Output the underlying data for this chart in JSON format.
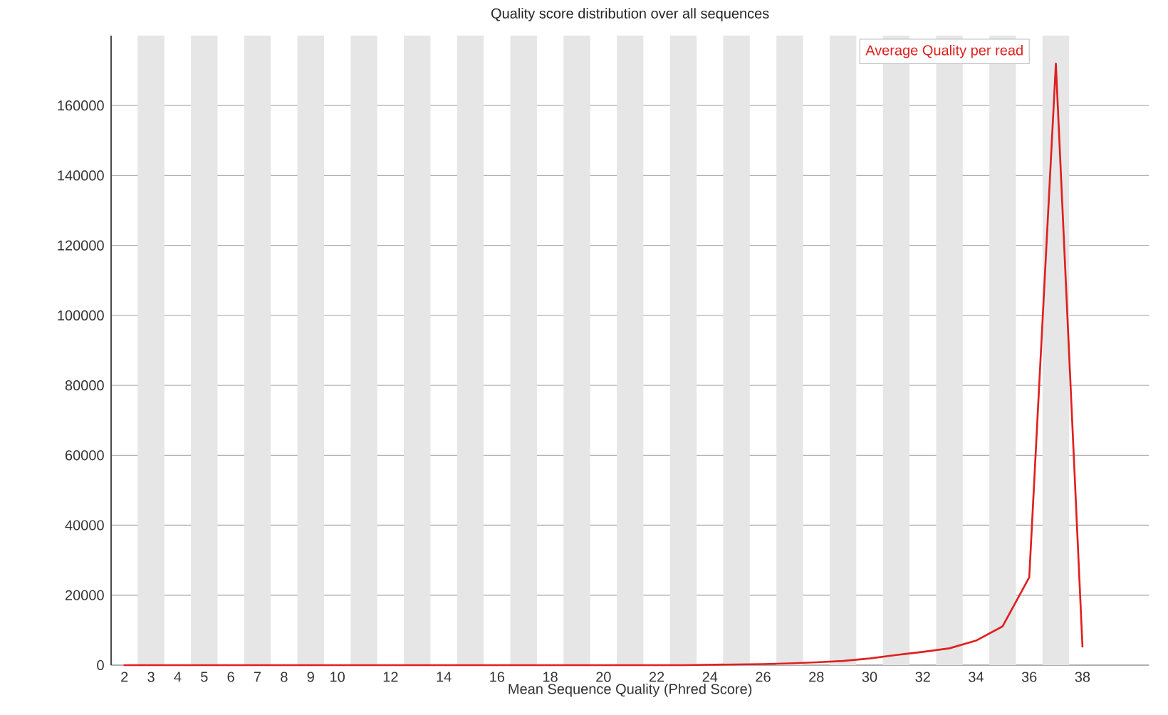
{
  "chart_data": {
    "type": "line",
    "title": "Quality score distribution over all sequences",
    "xlabel": "Mean Sequence Quality (Phred Score)",
    "x": [
      2,
      3,
      4,
      5,
      6,
      7,
      8,
      9,
      10,
      11,
      12,
      13,
      14,
      15,
      16,
      17,
      18,
      19,
      20,
      21,
      22,
      23,
      24,
      25,
      26,
      27,
      28,
      29,
      30,
      31,
      32,
      33,
      34,
      35,
      36,
      37,
      38
    ],
    "series": [
      {
        "name": "Average Quality per read",
        "color": "#e02020",
        "values": [
          0,
          0,
          0,
          0,
          0,
          0,
          0,
          0,
          0,
          0,
          0,
          0,
          0,
          0,
          0,
          0,
          0,
          0,
          0,
          0,
          0,
          0,
          100,
          200,
          300,
          500,
          800,
          1200,
          1900,
          2900,
          3800,
          4800,
          7000,
          11100,
          25100,
          172000,
          5300
        ]
      }
    ],
    "xlim": [
      1.5,
      40.5
    ],
    "ylim": [
      0,
      180000
    ],
    "xticks": [
      2,
      3,
      4,
      5,
      6,
      7,
      8,
      9,
      10,
      12,
      14,
      16,
      18,
      20,
      22,
      24,
      26,
      28,
      30,
      32,
      34,
      36,
      38
    ],
    "yticks": [
      0,
      20000,
      40000,
      60000,
      80000,
      100000,
      120000,
      140000,
      160000
    ],
    "grid": "y",
    "legend": "top right",
    "marker": "none",
    "line_style": "solid",
    "bands": [
      {
        "axis": "x",
        "from": 2.5,
        "to": 3.5,
        "color": "#e6e6e6"
      },
      {
        "axis": "x",
        "from": 4.5,
        "to": 5.5,
        "color": "#e6e6e6"
      },
      {
        "axis": "x",
        "from": 6.5,
        "to": 7.5,
        "color": "#e6e6e6"
      },
      {
        "axis": "x",
        "from": 8.5,
        "to": 9.5,
        "color": "#e6e6e6"
      },
      {
        "axis": "x",
        "from": 10.5,
        "to": 11.5,
        "color": "#e6e6e6"
      },
      {
        "axis": "x",
        "from": 12.5,
        "to": 13.5,
        "color": "#e6e6e6"
      },
      {
        "axis": "x",
        "from": 14.5,
        "to": 15.5,
        "color": "#e6e6e6"
      },
      {
        "axis": "x",
        "from": 16.5,
        "to": 17.5,
        "color": "#e6e6e6"
      },
      {
        "axis": "x",
        "from": 18.5,
        "to": 19.5,
        "color": "#e6e6e6"
      },
      {
        "axis": "x",
        "from": 20.5,
        "to": 21.5,
        "color": "#e6e6e6"
      },
      {
        "axis": "x",
        "from": 22.5,
        "to": 23.5,
        "color": "#e6e6e6"
      },
      {
        "axis": "x",
        "from": 24.5,
        "to": 25.5,
        "color": "#e6e6e6"
      },
      {
        "axis": "x",
        "from": 26.5,
        "to": 27.5,
        "color": "#e6e6e6"
      },
      {
        "axis": "x",
        "from": 28.5,
        "to": 29.5,
        "color": "#e6e6e6"
      },
      {
        "axis": "x",
        "from": 30.5,
        "to": 31.5,
        "color": "#e6e6e6"
      },
      {
        "axis": "x",
        "from": 32.5,
        "to": 33.5,
        "color": "#e6e6e6"
      },
      {
        "axis": "x",
        "from": 34.5,
        "to": 35.5,
        "color": "#e6e6e6"
      },
      {
        "axis": "x",
        "from": 36.5,
        "to": 37.5,
        "color": "#e6e6e6"
      }
    ]
  }
}
